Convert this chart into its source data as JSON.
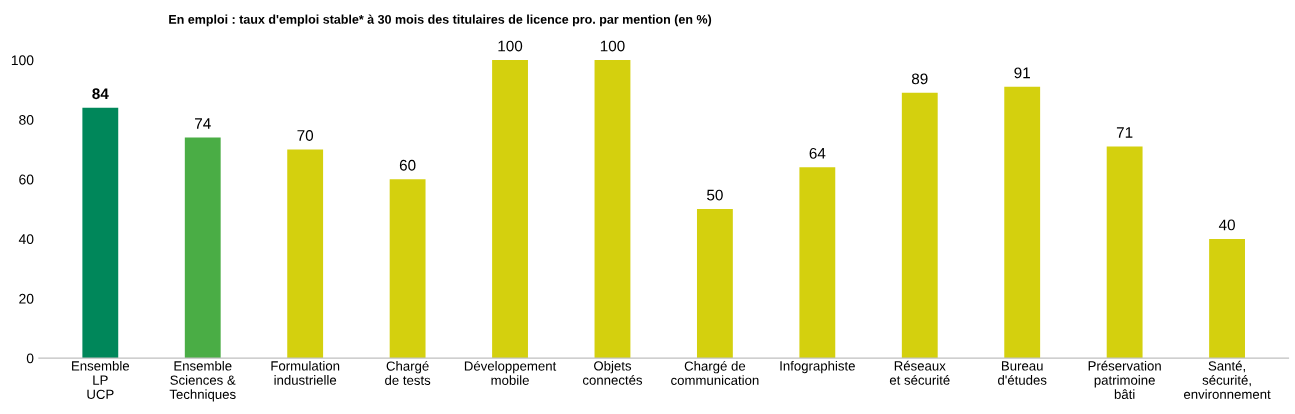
{
  "chart_data": {
    "type": "bar",
    "title": "En emploi : taux d'emploi stable* à 30 mois des titulaires de licence pro. par mention (en %)",
    "categories": [
      "Ensemble\nLP\nUCP",
      "Ensemble\nSciences &\nTechniques",
      "Formulation\nindustrielle",
      "Chargé\nde tests",
      "Développement\nmobile",
      "Objets\nconnectés",
      "Chargé de\ncommunication",
      "Infographiste",
      "Réseaux\net sécurité",
      "Bureau\nd'études",
      "Préservation\npatrimoine\nbâti",
      "Santé,\nsécurité,\nenvironnement"
    ],
    "values": [
      84,
      74,
      70,
      60,
      100,
      100,
      50,
      64,
      89,
      91,
      71,
      40
    ],
    "colors": [
      "#00875a",
      "#4aad45",
      "#d4d00e",
      "#d4d00e",
      "#d4d00e",
      "#d4d00e",
      "#d4d00e",
      "#d4d00e",
      "#d4d00e",
      "#d4d00e",
      "#d4d00e",
      "#d4d00e"
    ],
    "ylim": [
      0,
      100
    ],
    "yticks": [
      0,
      20,
      40,
      60,
      80,
      100
    ],
    "grid": false,
    "data_labels": true
  }
}
